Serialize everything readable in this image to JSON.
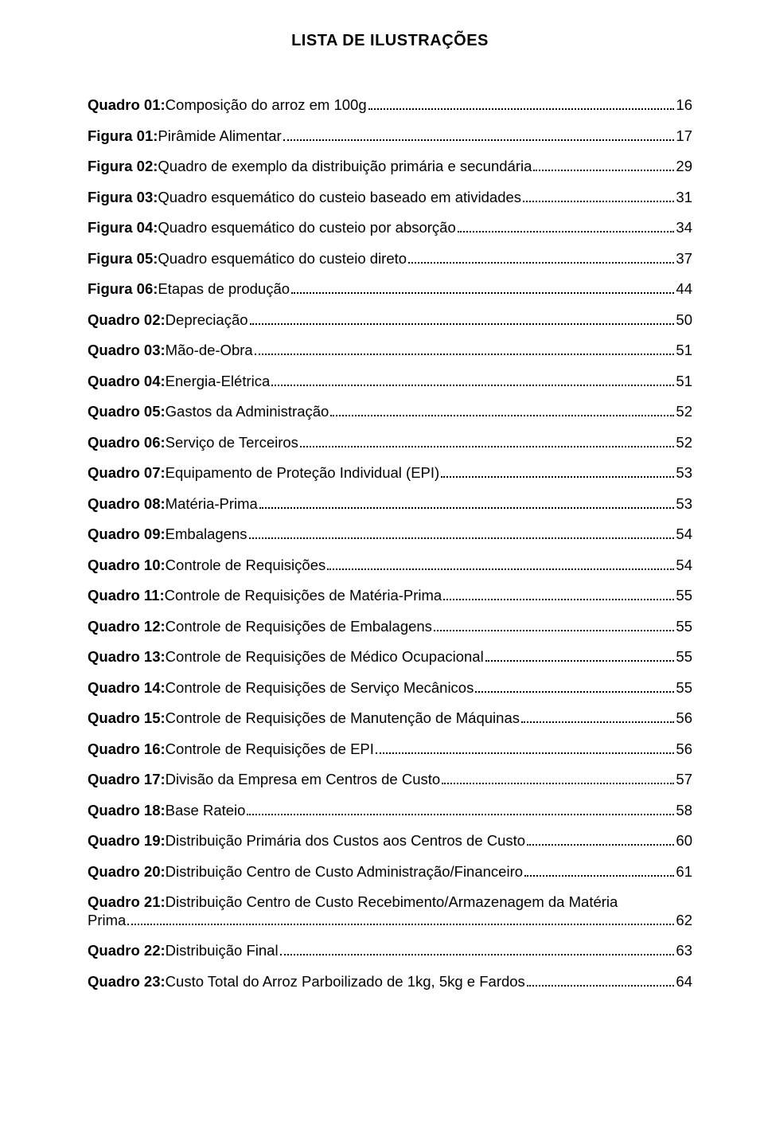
{
  "title": "LISTA DE ILUSTRAÇÕES",
  "entries": [
    {
      "label": "Quadro 01:",
      "desc": " Composição do arroz em 100g",
      "page": "16"
    },
    {
      "label": "Figura 01:",
      "desc": " Pirâmide Alimentar",
      "page": "17"
    },
    {
      "label": "Figura 02:",
      "desc": " Quadro de exemplo da distribuição primária e secundária",
      "page": "29"
    },
    {
      "label": "Figura 03:",
      "desc": " Quadro esquemático do custeio baseado em atividades",
      "page": "31"
    },
    {
      "label": "Figura 04:",
      "desc": " Quadro esquemático do custeio por absorção",
      "page": "34"
    },
    {
      "label": "Figura 05:",
      "desc": " Quadro esquemático do custeio direto",
      "page": "37"
    },
    {
      "label": "Figura 06:",
      "desc": " Etapas de produção",
      "page": "44"
    },
    {
      "label": "Quadro 02:",
      "desc": " Depreciação",
      "page": "50"
    },
    {
      "label": "Quadro 03:",
      "desc": " Mão-de-Obra",
      "page": "51"
    },
    {
      "label": "Quadro 04:",
      "desc": " Energia-Elétrica",
      "page": "51"
    },
    {
      "label": "Quadro 05:",
      "desc": " Gastos da Administração",
      "page": "52"
    },
    {
      "label": "Quadro 06:",
      "desc": " Serviço de Terceiros",
      "page": "52"
    },
    {
      "label": "Quadro 07:",
      "desc": " Equipamento de Proteção Individual (EPI)",
      "page": "53"
    },
    {
      "label": "Quadro 08:",
      "desc": " Matéria-Prima",
      "page": "53"
    },
    {
      "label": "Quadro 09:",
      "desc": " Embalagens",
      "page": "54"
    },
    {
      "label": "Quadro 10:",
      "desc": " Controle de Requisições",
      "page": "54"
    },
    {
      "label": "Quadro 11:",
      "desc": " Controle de Requisições de Matéria-Prima",
      "page": "55"
    },
    {
      "label": "Quadro 12:",
      "desc": " Controle de Requisições de Embalagens",
      "page": "55"
    },
    {
      "label": "Quadro 13:",
      "desc": " Controle de Requisições de Médico Ocupacional",
      "page": "55"
    },
    {
      "label": "Quadro 14:",
      "desc": " Controle de Requisições de Serviço Mecânicos",
      "page": "55"
    },
    {
      "label": "Quadro 15:",
      "desc": " Controle de Requisições de Manutenção de Máquinas",
      "page": "56"
    },
    {
      "label": "Quadro 16:",
      "desc": " Controle de Requisições de EPI",
      "page": "56"
    },
    {
      "label": "Quadro 17:",
      "desc": " Divisão da Empresa em Centros de Custo",
      "page": "57"
    },
    {
      "label": "Quadro 18:",
      "desc": " Base Rateio",
      "page": "58"
    },
    {
      "label": "Quadro 19:",
      "desc": " Distribuição Primária dos Custos aos Centros de Custo",
      "page": "60"
    },
    {
      "label": "Quadro 20:",
      "desc": " Distribuição Centro de Custo Administração/Financeiro",
      "page": "61"
    },
    {
      "label": "Quadro 21:",
      "desc": " Distribuição Centro de Custo Recebimento/Armazenagem da Matéria",
      "wrap": true,
      "wrap_desc": "Prima",
      "page": "62"
    },
    {
      "label": "Quadro 22:",
      "desc": " Distribuição Final",
      "page": "63"
    },
    {
      "label": "Quadro 23:",
      "desc": " Custo Total do Arroz Parboilizado de 1kg, 5kg e Fardos",
      "page": "64"
    }
  ]
}
